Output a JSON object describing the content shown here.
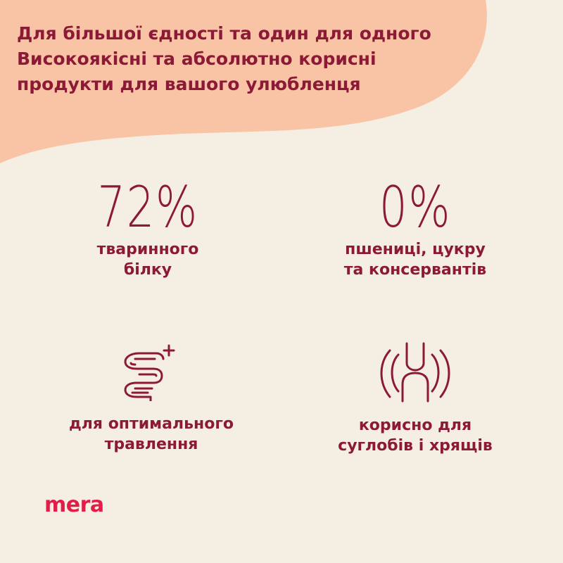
{
  "headline": {
    "line1": "Для більшої єдності та один для одного",
    "line2": "Високоякісні та абсолютно корисні",
    "line3": "продукти для вашого улюбленця"
  },
  "stats": {
    "protein": {
      "value": "72%",
      "caption_line1": "тваринного",
      "caption_line2": "білку"
    },
    "wheat": {
      "value": "0%",
      "caption_line1": "пшениці, цукру",
      "caption_line2": "та консервантів"
    },
    "digestion": {
      "icon": "intestine-plus-icon",
      "caption_line1": "для оптимального",
      "caption_line2": "травлення"
    },
    "joints": {
      "icon": "joint-icon",
      "caption_line1": "корисно для",
      "caption_line2": "суглобів і хрящів"
    }
  },
  "brand": {
    "logo_text": "mera"
  },
  "colors": {
    "background": "#f5efe3",
    "header_blob": "#f9c3a5",
    "text": "#8c1a37",
    "logo": "#e11d48"
  }
}
